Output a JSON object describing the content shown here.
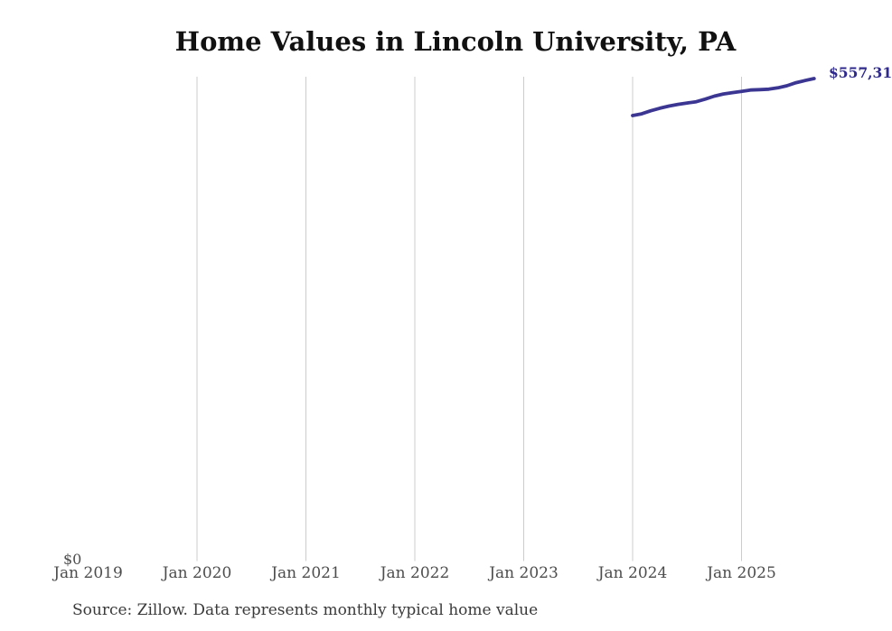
{
  "title": "Home Values in Lincoln University, PA",
  "source_note": "Source: Zillow. Data represents monthly typical home value",
  "y_axis": {
    "zero_label": "$0"
  },
  "end_value_label": "$557,31",
  "colors": {
    "background": "#ffffff",
    "title": "#111111",
    "axis_text": "#4d4d4d",
    "source_text": "#3a3a3a",
    "grid": "#cccccc",
    "line": "#3c3693",
    "value_label": "#2f2a8c"
  },
  "chart_data": {
    "type": "line",
    "title": "Home Values in Lincoln University, PA",
    "xlabel": "",
    "ylabel": "",
    "ylim": [
      0,
      560000
    ],
    "grid": "vertical-only",
    "legend_position": "none",
    "end_label": "$557,31",
    "x_ticks": [
      {
        "label": "Jan 2019",
        "month": "2019-01",
        "gridline": false
      },
      {
        "label": "Jan 2020",
        "month": "2020-01",
        "gridline": true
      },
      {
        "label": "Jan 2021",
        "month": "2021-01",
        "gridline": true
      },
      {
        "label": "Jan 2022",
        "month": "2022-01",
        "gridline": true
      },
      {
        "label": "Jan 2023",
        "month": "2023-01",
        "gridline": true
      },
      {
        "label": "Jan 2024",
        "month": "2024-01",
        "gridline": true
      },
      {
        "label": "Jan 2025",
        "month": "2025-01",
        "gridline": true
      }
    ],
    "series": [
      {
        "name": "Monthly typical home value",
        "x": [
          "2024-01",
          "2024-02",
          "2024-03",
          "2024-04",
          "2024-05",
          "2024-06",
          "2024-07",
          "2024-08",
          "2024-09",
          "2024-10",
          "2024-11",
          "2024-12",
          "2025-01",
          "2025-02",
          "2025-03",
          "2025-04",
          "2025-05",
          "2025-06",
          "2025-07",
          "2025-08",
          "2025-09"
        ],
        "values": [
          514500,
          516500,
          520000,
          523000,
          525500,
          527500,
          529000,
          530500,
          533500,
          537000,
          539500,
          541000,
          542500,
          544000,
          544500,
          545000,
          546500,
          549000,
          552500,
          555000,
          557300
        ]
      }
    ]
  }
}
